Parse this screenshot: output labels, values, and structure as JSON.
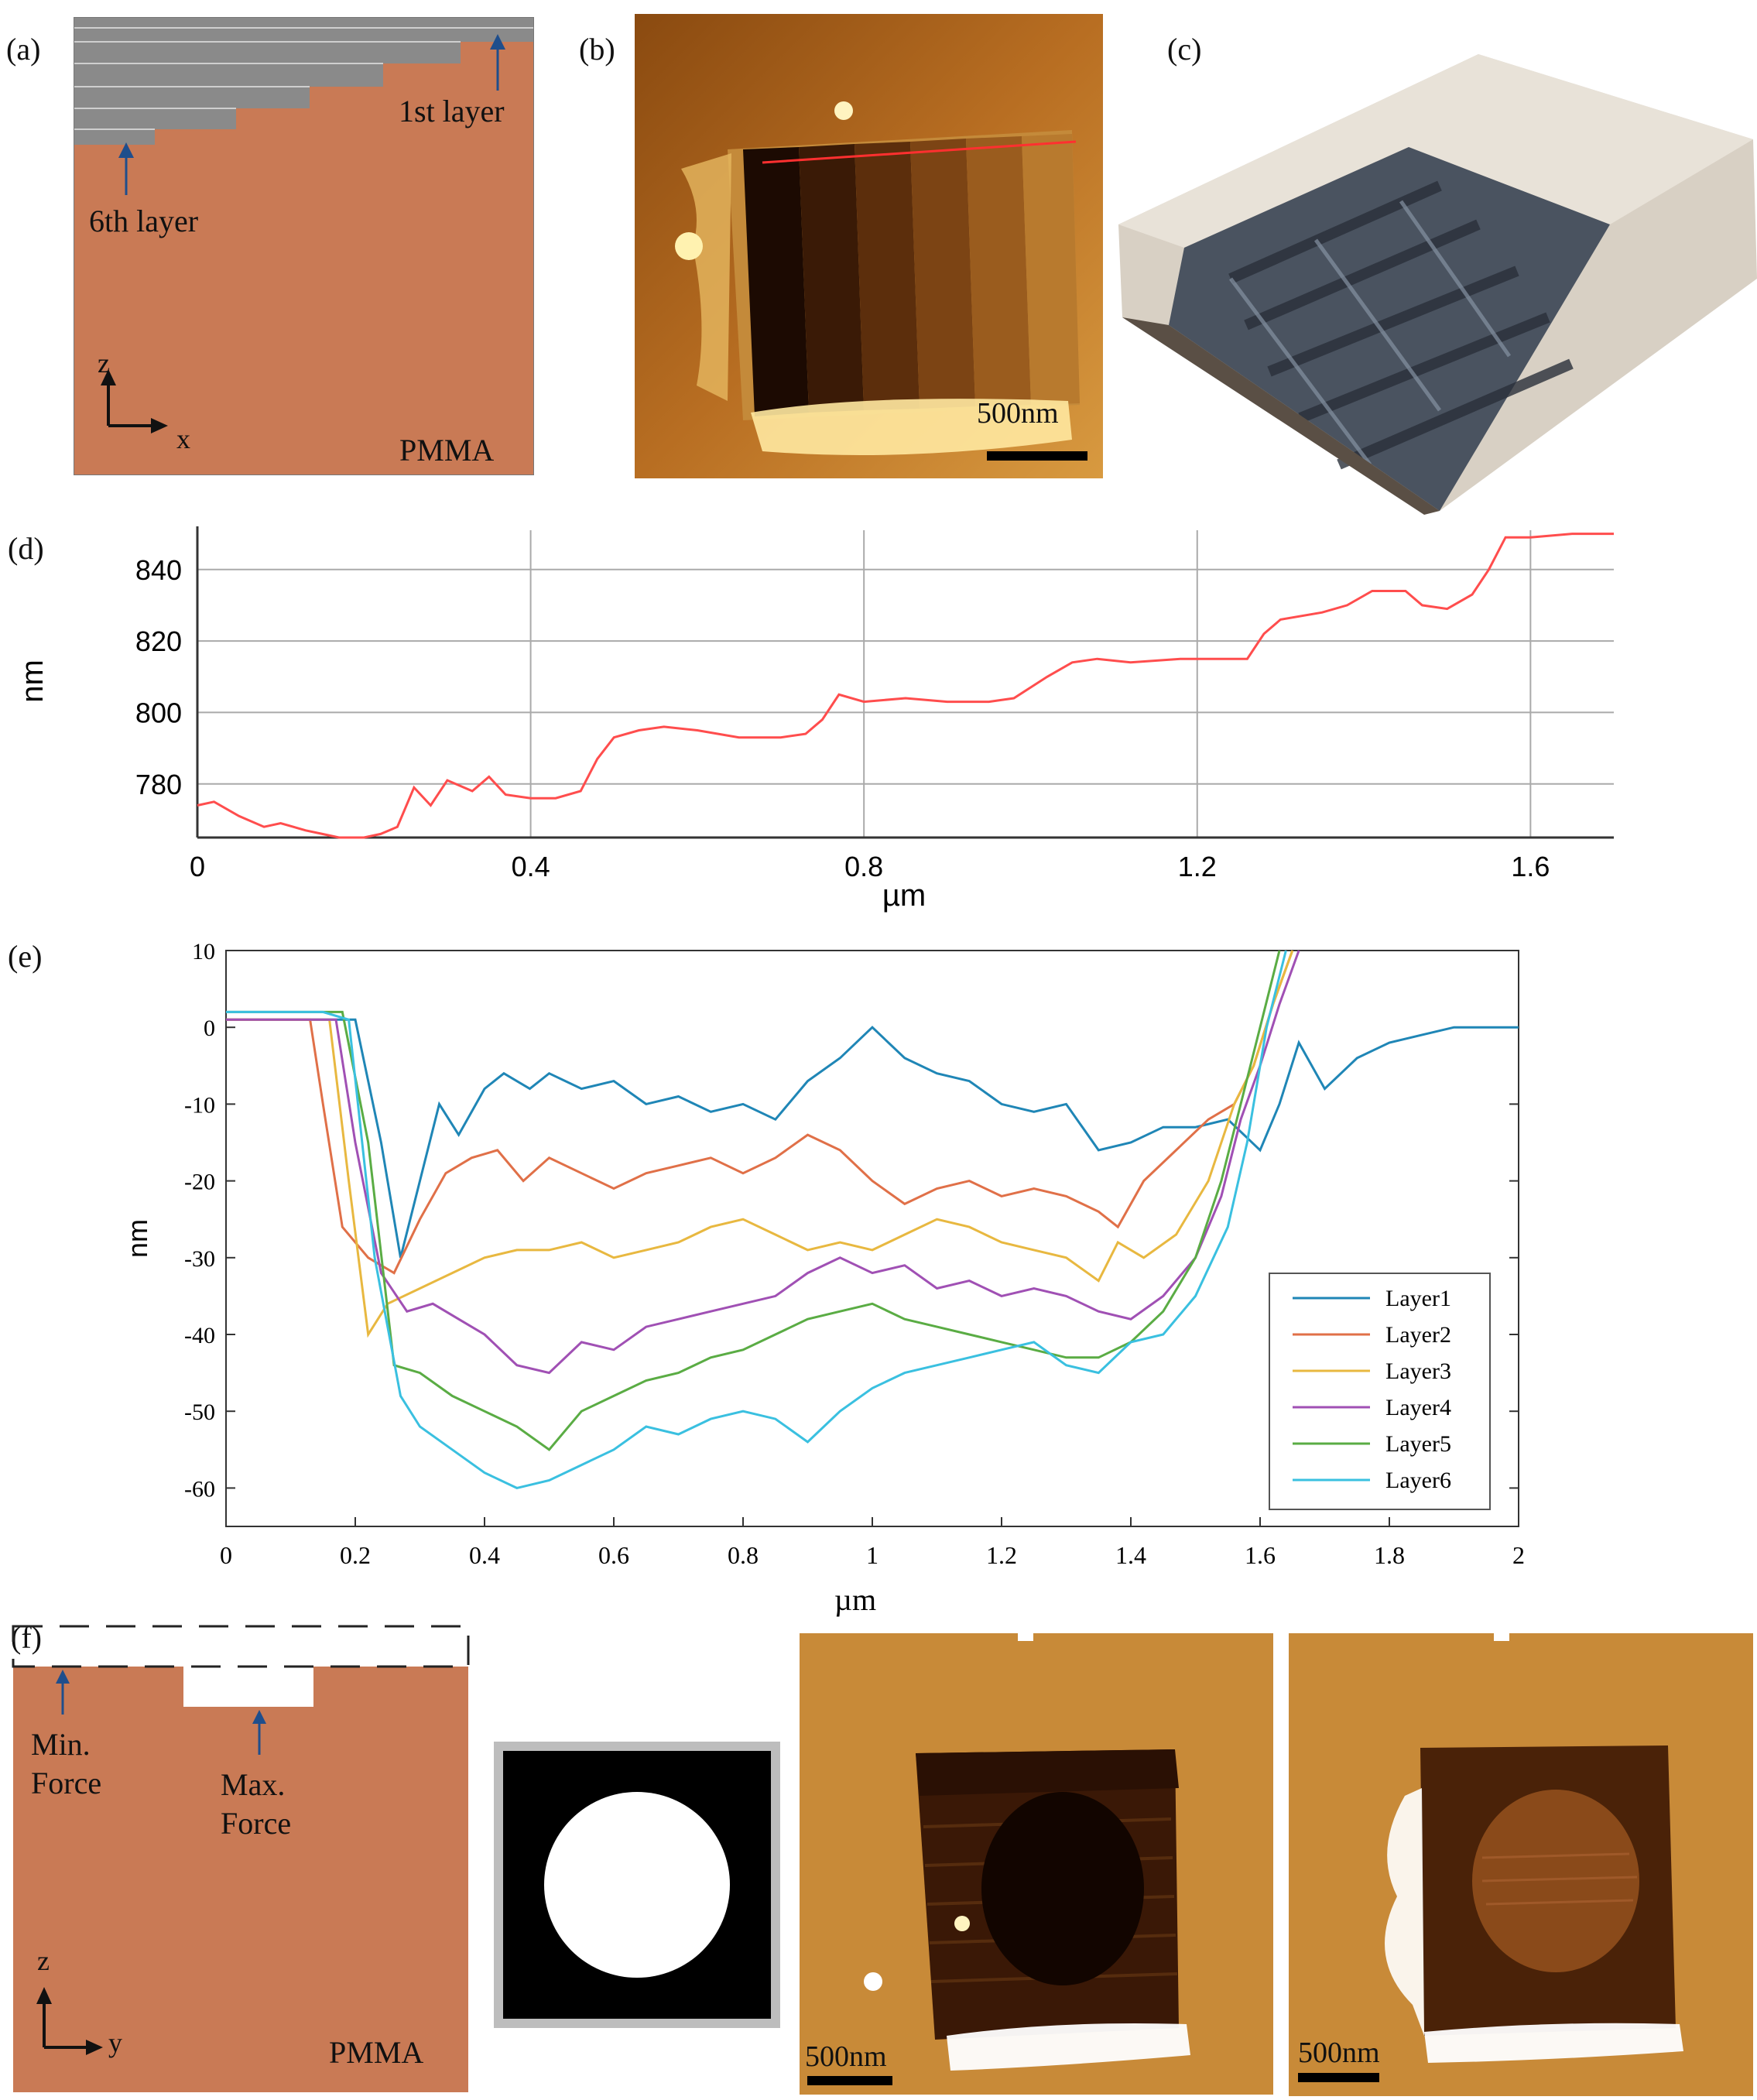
{
  "panel_labels": {
    "a": "(a)",
    "b": "(b)",
    "c": "(c)",
    "d": "(d)",
    "e": "(e)",
    "f": "(f)"
  },
  "colors": {
    "pmma": "#C97A55",
    "layer_gray": "#8a8a8a",
    "profile_red": "#ff4d4d",
    "arrow_blue": "#1f4e8c"
  },
  "panel_a": {
    "top_layer": "1st layer",
    "bottom_layer": "6th layer",
    "material": "PMMA",
    "axis_vertical": "z",
    "axis_horizontal": "x"
  },
  "panel_b": {
    "scalebar": "500nm"
  },
  "panel_f": {
    "min_label": "Min.",
    "min_label2": "Force",
    "max_label": "Max.",
    "max_label2": "Force",
    "material": "PMMA",
    "axis_vertical": "z",
    "axis_horizontal": "y",
    "scalebar_1": "500nm",
    "scalebar_2": "500nm"
  },
  "chart_data": [
    {
      "type": "line",
      "xlabel": "µm",
      "ylabel": "nm",
      "xlim": [
        0,
        1.7
      ],
      "ylim": [
        765,
        851
      ],
      "x_ticks": [
        "0",
        "0.4",
        "0.8",
        "1.2",
        "1.6"
      ],
      "y_ticks": [
        "780",
        "800",
        "820",
        "840"
      ],
      "grid": true,
      "series": [
        {
          "color": "#ff4d4d",
          "x": [
            0,
            0.02,
            0.05,
            0.08,
            0.1,
            0.13,
            0.15,
            0.17,
            0.2,
            0.22,
            0.24,
            0.26,
            0.28,
            0.3,
            0.33,
            0.35,
            0.37,
            0.4,
            0.43,
            0.46,
            0.48,
            0.5,
            0.53,
            0.56,
            0.6,
            0.65,
            0.7,
            0.73,
            0.75,
            0.77,
            0.8,
            0.85,
            0.9,
            0.95,
            0.98,
            1.0,
            1.02,
            1.05,
            1.08,
            1.12,
            1.18,
            1.22,
            1.26,
            1.28,
            1.3,
            1.35,
            1.38,
            1.41,
            1.45,
            1.47,
            1.5,
            1.53,
            1.55,
            1.57,
            1.6,
            1.65,
            1.7
          ],
          "y": [
            774,
            775,
            771,
            768,
            769,
            767,
            766,
            765,
            765,
            766,
            768,
            779,
            774,
            781,
            778,
            782,
            777,
            776,
            776,
            778,
            787,
            793,
            795,
            796,
            795,
            793,
            793,
            794,
            798,
            805,
            803,
            804,
            803,
            803,
            804,
            807,
            810,
            814,
            815,
            814,
            815,
            815,
            815,
            822,
            826,
            828,
            830,
            834,
            834,
            830,
            829,
            833,
            840,
            849,
            849,
            850,
            850
          ]
        }
      ]
    },
    {
      "type": "line",
      "xlabel": "µm",
      "ylabel": "nm",
      "xlim": [
        0,
        2
      ],
      "ylim": [
        -65,
        10
      ],
      "x_ticks": [
        "0",
        "0.2",
        "0.4",
        "0.6",
        "0.8",
        "1",
        "1.2",
        "1.4",
        "1.6",
        "1.8",
        "2"
      ],
      "y_ticks": [
        "10",
        "0",
        "-10",
        "-20",
        "-30",
        "-40",
        "-50",
        "-60"
      ],
      "legend": "right",
      "series": [
        {
          "name": "Layer1",
          "color": "#1f86b6",
          "x": [
            0,
            0.15,
            0.2,
            0.24,
            0.27,
            0.3,
            0.33,
            0.36,
            0.4,
            0.43,
            0.47,
            0.5,
            0.55,
            0.6,
            0.65,
            0.7,
            0.75,
            0.8,
            0.85,
            0.9,
            0.95,
            1.0,
            1.05,
            1.1,
            1.15,
            1.2,
            1.25,
            1.3,
            1.35,
            1.4,
            1.45,
            1.5,
            1.55,
            1.6,
            1.63,
            1.66,
            1.7,
            1.75,
            1.8,
            1.85,
            1.9,
            1.95,
            2.0
          ],
          "y": [
            1,
            1,
            1,
            -15,
            -30,
            -20,
            -10,
            -14,
            -8,
            -6,
            -8,
            -6,
            -8,
            -7,
            -10,
            -9,
            -11,
            -10,
            -12,
            -7,
            -4,
            0,
            -4,
            -6,
            -7,
            -10,
            -11,
            -10,
            -16,
            -15,
            -13,
            -13,
            -12,
            -16,
            -10,
            -2,
            -8,
            -4,
            -2,
            -1,
            0,
            0,
            0
          ]
        },
        {
          "name": "Layer2",
          "color": "#e07048",
          "x": [
            0,
            0.13,
            0.15,
            0.18,
            0.22,
            0.26,
            0.3,
            0.34,
            0.38,
            0.42,
            0.46,
            0.5,
            0.55,
            0.6,
            0.65,
            0.7,
            0.75,
            0.8,
            0.85,
            0.9,
            0.95,
            1.0,
            1.05,
            1.1,
            1.15,
            1.2,
            1.25,
            1.3,
            1.35,
            1.38,
            1.42,
            1.47,
            1.52,
            1.56,
            1.59,
            1.62,
            1.65
          ],
          "y": [
            1,
            1,
            -10,
            -26,
            -30,
            -32,
            -25,
            -19,
            -17,
            -16,
            -20,
            -17,
            -19,
            -21,
            -19,
            -18,
            -17,
            -19,
            -17,
            -14,
            -16,
            -20,
            -23,
            -21,
            -20,
            -22,
            -21,
            -22,
            -24,
            -26,
            -20,
            -16,
            -12,
            -10,
            -5,
            3,
            10
          ]
        },
        {
          "name": "Layer3",
          "color": "#e8b840",
          "x": [
            0,
            0.16,
            0.19,
            0.22,
            0.25,
            0.3,
            0.35,
            0.4,
            0.45,
            0.5,
            0.55,
            0.6,
            0.65,
            0.7,
            0.75,
            0.8,
            0.85,
            0.9,
            0.95,
            1.0,
            1.05,
            1.1,
            1.15,
            1.2,
            1.25,
            1.3,
            1.35,
            1.38,
            1.42,
            1.47,
            1.52,
            1.56,
            1.59,
            1.62,
            1.65
          ],
          "y": [
            1,
            1,
            -20,
            -40,
            -36,
            -34,
            -32,
            -30,
            -29,
            -29,
            -28,
            -30,
            -29,
            -28,
            -26,
            -25,
            -27,
            -29,
            -28,
            -29,
            -27,
            -25,
            -26,
            -28,
            -29,
            -30,
            -33,
            -28,
            -30,
            -27,
            -20,
            -10,
            -5,
            3,
            10
          ]
        },
        {
          "name": "Layer4",
          "color": "#a050b4",
          "x": [
            0,
            0.17,
            0.2,
            0.24,
            0.28,
            0.32,
            0.36,
            0.4,
            0.45,
            0.5,
            0.55,
            0.6,
            0.65,
            0.7,
            0.75,
            0.8,
            0.85,
            0.9,
            0.95,
            1.0,
            1.05,
            1.1,
            1.15,
            1.2,
            1.25,
            1.3,
            1.35,
            1.4,
            1.45,
            1.5,
            1.54,
            1.57,
            1.6,
            1.63,
            1.66
          ],
          "y": [
            1,
            1,
            -15,
            -32,
            -37,
            -36,
            -38,
            -40,
            -44,
            -45,
            -41,
            -42,
            -39,
            -38,
            -37,
            -36,
            -35,
            -32,
            -30,
            -32,
            -31,
            -34,
            -33,
            -35,
            -34,
            -35,
            -37,
            -38,
            -35,
            -30,
            -22,
            -12,
            -5,
            3,
            10
          ]
        },
        {
          "name": "Layer5",
          "color": "#5aac44",
          "x": [
            0,
            0.18,
            0.22,
            0.26,
            0.3,
            0.35,
            0.4,
            0.45,
            0.5,
            0.55,
            0.6,
            0.65,
            0.7,
            0.75,
            0.8,
            0.85,
            0.9,
            0.95,
            1.0,
            1.05,
            1.1,
            1.15,
            1.2,
            1.25,
            1.3,
            1.35,
            1.4,
            1.45,
            1.5,
            1.54,
            1.57,
            1.6,
            1.63
          ],
          "y": [
            2,
            2,
            -15,
            -44,
            -45,
            -48,
            -50,
            -52,
            -55,
            -50,
            -48,
            -46,
            -45,
            -43,
            -42,
            -40,
            -38,
            -37,
            -36,
            -38,
            -39,
            -40,
            -41,
            -42,
            -43,
            -43,
            -41,
            -37,
            -30,
            -20,
            -10,
            0,
            10
          ]
        },
        {
          "name": "Layer6",
          "color": "#3ac0e0",
          "x": [
            0,
            0.15,
            0.19,
            0.23,
            0.27,
            0.3,
            0.35,
            0.4,
            0.45,
            0.5,
            0.55,
            0.6,
            0.65,
            0.7,
            0.75,
            0.8,
            0.85,
            0.9,
            0.95,
            1.0,
            1.05,
            1.1,
            1.15,
            1.2,
            1.25,
            1.3,
            1.35,
            1.4,
            1.45,
            1.5,
            1.55,
            1.58,
            1.61,
            1.64
          ],
          "y": [
            2,
            2,
            1,
            -30,
            -48,
            -52,
            -55,
            -58,
            -60,
            -59,
            -57,
            -55,
            -52,
            -53,
            -51,
            -50,
            -51,
            -54,
            -50,
            -47,
            -45,
            -44,
            -43,
            -42,
            -41,
            -44,
            -45,
            -41,
            -40,
            -35,
            -26,
            -15,
            0,
            10
          ]
        }
      ]
    }
  ]
}
